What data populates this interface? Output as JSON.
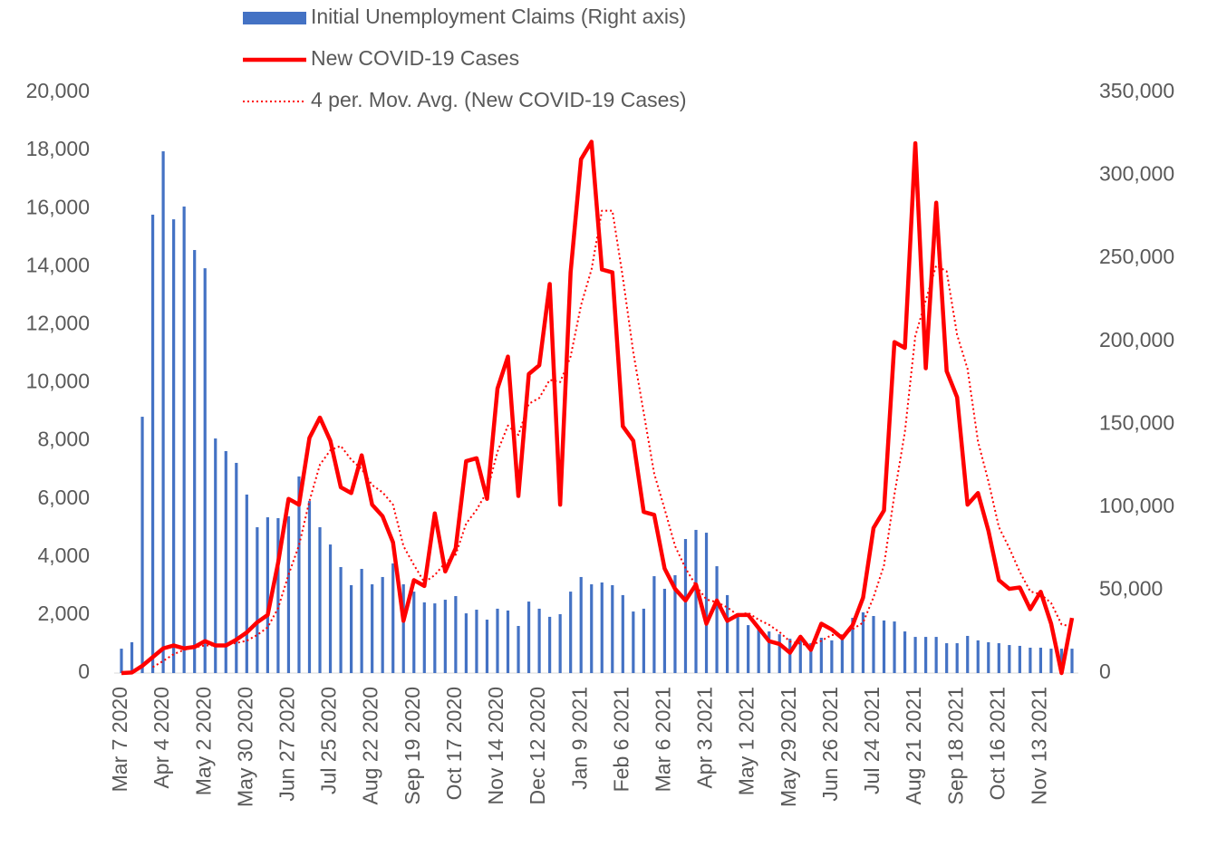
{
  "chart_data": {
    "type": "combo",
    "categories": [
      "Mar 7 2020",
      null,
      null,
      null,
      "Apr 4 2020",
      null,
      null,
      null,
      "May 2 2020",
      null,
      null,
      null,
      "May 30 2020",
      null,
      null,
      null,
      "Jun 27 2020",
      null,
      null,
      null,
      "Jul 25 2020",
      null,
      null,
      null,
      "Aug 22 2020",
      null,
      null,
      null,
      "Sep 19 2020",
      null,
      null,
      null,
      "Oct 17 2020",
      null,
      null,
      null,
      "Nov 14 2020",
      null,
      null,
      null,
      "Dec 12 2020",
      null,
      null,
      null,
      "Jan 9 2021",
      null,
      null,
      null,
      "Feb 6 2021",
      null,
      null,
      null,
      "Mar 6 2021",
      null,
      null,
      null,
      "Apr 3 2021",
      null,
      null,
      null,
      "May 1 2021",
      null,
      null,
      null,
      "May 29 2021",
      null,
      null,
      null,
      "Jun 26 2021",
      null,
      null,
      null,
      "Jul 24 2021",
      null,
      null,
      null,
      "Aug 21 2021",
      null,
      null,
      null,
      "Sep 18 2021",
      null,
      null,
      null,
      "Oct 16 2021",
      null,
      null,
      null,
      "Nov 13 2021",
      null,
      null,
      null
    ],
    "series": [
      {
        "name": "Initial Unemployment Claims (Right axis)",
        "type": "bar",
        "axis": "y2",
        "color": "#4472c4",
        "values": [
          14700,
          18600,
          154500,
          276300,
          314500,
          273500,
          281200,
          255000,
          244000,
          141400,
          133800,
          126700,
          107600,
          87900,
          93900,
          93400,
          94500,
          118500,
          103700,
          87900,
          77500,
          63900,
          53000,
          62800,
          53500,
          57900,
          66100,
          53500,
          49100,
          42600,
          42000,
          44200,
          46400,
          36000,
          38200,
          32200,
          38800,
          37700,
          28400,
          43100,
          38800,
          33900,
          35500,
          49100,
          57900,
          53500,
          54600,
          53000,
          47000,
          37100,
          38800,
          58400,
          50800,
          59000,
          80800,
          86300,
          84600,
          64400,
          47000,
          35500,
          28900,
          26200,
          25100,
          23400,
          20700,
          19700,
          18000,
          21300,
          19700,
          21800,
          33300,
          36600,
          34400,
          31700,
          31100,
          25100,
          21800,
          21800,
          21800,
          18000,
          18000,
          22400,
          19700,
          18600,
          18000,
          16900,
          16400,
          15300,
          15300,
          14700,
          14700,
          14700
        ]
      },
      {
        "name": "New COVID-19 Cases",
        "type": "line",
        "axis": "y",
        "color": "#ff0000",
        "dash": "solid",
        "values": [
          0,
          20,
          250,
          550,
          850,
          950,
          850,
          900,
          1100,
          950,
          950,
          1150,
          1400,
          1750,
          2000,
          3800,
          6000,
          5800,
          8100,
          8800,
          8000,
          6400,
          6200,
          7500,
          5800,
          5400,
          4500,
          1800,
          3200,
          3000,
          5500,
          3500,
          4300,
          7300,
          7400,
          6000,
          9800,
          10900,
          6100,
          10300,
          10600,
          13400,
          5800,
          13800,
          17700,
          18300,
          13900,
          13800,
          8500,
          8000,
          5550,
          5450,
          3600,
          2900,
          2500,
          3050,
          1700,
          2500,
          1800,
          2000,
          2000,
          1550,
          1100,
          1000,
          700,
          1250,
          800,
          1700,
          1500,
          1200,
          1650,
          2600,
          5000,
          5600,
          11400,
          11200,
          18250,
          10500,
          16200,
          10400,
          9500,
          5800,
          6200,
          4900,
          3200,
          2900,
          2950,
          2200,
          2800,
          1700,
          0,
          1900
        ]
      },
      {
        "name": "4 per. Mov. Avg. (New COVID-19 Cases)",
        "type": "line",
        "axis": "y",
        "color": "#ff0000",
        "dash": "dotted",
        "values": [
          null,
          null,
          null,
          205,
          417.5,
          650,
          800,
          887.5,
          950,
          950,
          975,
          1037.5,
          1112.5,
          1312.5,
          1575,
          2237.5,
          3387.5,
          4400,
          5925,
          7175,
          7675,
          7825,
          7350,
          7025,
          6475,
          6225,
          5800,
          4375,
          3725,
          3125,
          3375,
          3800,
          4075,
          5150,
          5625,
          6250,
          7625,
          8525,
          8200,
          9275,
          9475,
          10100,
          10025,
          10900,
          12675,
          13900,
          15925,
          15925,
          13625,
          11050,
          8962.5,
          6875,
          5650,
          4375,
          3612.5,
          3012.5,
          2537.5,
          2437.5,
          2262.5,
          2000,
          2075,
          1837.5,
          1662.5,
          1412.5,
          1087.5,
          1012.5,
          937.5,
          1112.5,
          1312.5,
          1300,
          1512.5,
          1737.5,
          2612.5,
          3712.5,
          6150,
          8300,
          11612.5,
          12837.5,
          14037.5,
          13837.5,
          11650,
          10475,
          7975,
          6600,
          5025,
          4300,
          3487.5,
          2812.5,
          2712.5,
          2412.5,
          1675,
          1600
        ]
      }
    ],
    "ylim": [
      0,
      20000
    ],
    "yticks": [
      0,
      {
        "value": 2000,
        "label": "2,000"
      },
      {
        "value": 4000,
        "label": "4,000"
      },
      {
        "value": 6000,
        "label": "6,000"
      },
      {
        "value": 8000,
        "label": "8,000"
      },
      {
        "value": 10000,
        "label": "10,000"
      },
      {
        "value": 12000,
        "label": "12,000"
      },
      {
        "value": 14000,
        "label": "14,000"
      },
      {
        "value": 16000,
        "label": "16,000"
      },
      {
        "value": 18000,
        "label": "18,000"
      },
      {
        "value": 20000,
        "label": "20,000"
      }
    ],
    "y2lim": [
      0,
      350000
    ],
    "y2ticks": [
      0,
      {
        "value": 50000,
        "label": "50,000"
      },
      {
        "value": 100000,
        "label": "100,000"
      },
      {
        "value": 150000,
        "label": "150,000"
      },
      {
        "value": 200000,
        "label": "200,000"
      },
      {
        "value": 250000,
        "label": "250,000"
      },
      {
        "value": 300000,
        "label": "300,000"
      },
      {
        "value": 350000,
        "label": "350,000"
      }
    ],
    "grid": false,
    "legend": "top"
  }
}
